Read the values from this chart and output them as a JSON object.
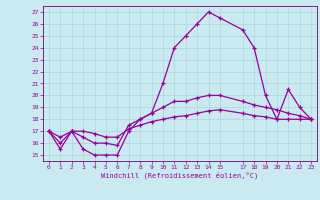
{
  "xlabel": "Windchill (Refroidissement éolien,°C)",
  "background_color": "#c8eaf0",
  "grid_color": "#aaccd8",
  "line_color": "#990099",
  "spine_color": "#770077",
  "xlim": [
    -0.5,
    23.5
  ],
  "ylim": [
    14.5,
    27.5
  ],
  "xticks": [
    0,
    1,
    2,
    3,
    4,
    5,
    6,
    7,
    8,
    9,
    10,
    11,
    12,
    13,
    14,
    15,
    17,
    18,
    19,
    20,
    21,
    22,
    23
  ],
  "yticks": [
    15,
    16,
    17,
    18,
    19,
    20,
    21,
    22,
    23,
    24,
    25,
    26,
    27
  ],
  "line1_x": [
    0,
    1,
    2,
    3,
    4,
    5,
    6,
    7,
    8,
    9,
    10,
    11,
    12,
    13,
    14,
    15,
    17,
    18,
    19,
    20,
    21,
    22,
    23
  ],
  "line1_y": [
    17.0,
    15.5,
    17.0,
    15.5,
    15.0,
    15.0,
    15.0,
    17.0,
    18.0,
    18.5,
    21.0,
    24.0,
    25.0,
    26.0,
    27.0,
    26.5,
    25.5,
    24.0,
    20.0,
    18.0,
    20.5,
    19.0,
    18.0
  ],
  "line2_x": [
    0,
    1,
    2,
    3,
    4,
    5,
    6,
    7,
    8,
    9,
    10,
    11,
    12,
    13,
    14,
    15,
    17,
    18,
    19,
    20,
    21,
    22,
    23
  ],
  "line2_y": [
    17.0,
    16.0,
    17.0,
    16.5,
    16.0,
    16.0,
    15.8,
    17.5,
    18.0,
    18.5,
    19.0,
    19.5,
    19.5,
    19.8,
    20.0,
    20.0,
    19.5,
    19.2,
    19.0,
    18.8,
    18.5,
    18.3,
    18.0
  ],
  "line3_x": [
    0,
    1,
    2,
    3,
    4,
    5,
    6,
    7,
    8,
    9,
    10,
    11,
    12,
    13,
    14,
    15,
    17,
    18,
    19,
    20,
    21,
    22,
    23
  ],
  "line3_y": [
    17.0,
    16.5,
    17.0,
    17.0,
    16.8,
    16.5,
    16.5,
    17.2,
    17.5,
    17.8,
    18.0,
    18.2,
    18.3,
    18.5,
    18.7,
    18.8,
    18.5,
    18.3,
    18.2,
    18.0,
    18.0,
    18.0,
    18.0
  ],
  "figsize": [
    3.2,
    2.0
  ],
  "dpi": 100
}
